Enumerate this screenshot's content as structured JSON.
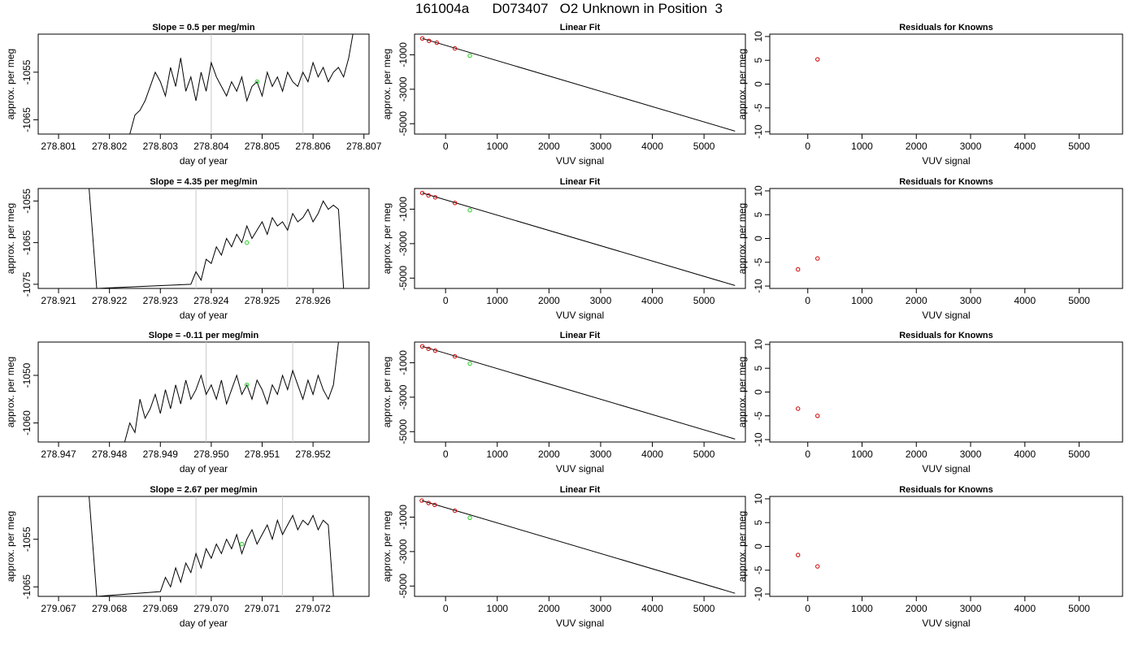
{
  "page": {
    "title": "161004a      D073407   O2 Unknown in Position  3"
  },
  "chart_data": [
    {
      "type": "line",
      "row": 0,
      "col": 0,
      "title": "Slope =  0.5  per meg/min",
      "xlabel": "day of year",
      "ylabel": "approx. per meg",
      "xlim": [
        278.8006,
        278.8071
      ],
      "ylim": [
        -1068,
        -1047
      ],
      "xticks": [
        "278.801",
        "278.802",
        "278.803",
        "278.804",
        "278.805",
        "278.806",
        "278.807"
      ],
      "yticks": [
        -1055,
        -1065
      ],
      "vlines": [
        278.804,
        278.8058
      ],
      "green_point": [
        278.8049,
        -1057
      ],
      "series": [
        {
          "x": [
            278.8024,
            278.8025,
            278.8026,
            278.8027,
            278.8028,
            278.8029,
            278.803,
            278.8031,
            278.8032,
            278.8033,
            278.8034,
            278.8035,
            278.8036,
            278.8037,
            278.8038,
            278.8039,
            278.804,
            278.8041,
            278.8042,
            278.8043,
            278.8044,
            278.8045,
            278.8046,
            278.8047,
            278.8048,
            278.8049,
            278.805,
            278.8051,
            278.8052,
            278.8053,
            278.8054,
            278.8055,
            278.8056,
            278.8057,
            278.8058,
            278.8059,
            278.806,
            278.8061,
            278.8062,
            278.8063,
            278.8064,
            278.8065,
            278.8066,
            278.8067,
            278.8068
          ],
          "y": [
            -1068,
            -1064,
            -1063,
            -1061,
            -1058,
            -1055,
            -1057,
            -1060,
            -1054,
            -1058,
            -1052,
            -1059,
            -1056,
            -1061,
            -1055,
            -1059,
            -1053,
            -1056,
            -1058,
            -1060,
            -1057,
            -1059,
            -1056,
            -1061,
            -1058,
            -1057,
            -1060,
            -1055,
            -1058,
            -1056,
            -1059,
            -1055,
            -1057,
            -1058,
            -1055,
            -1057,
            -1053,
            -1056,
            -1054,
            -1057,
            -1055,
            -1054,
            -1056,
            -1052,
            -1046
          ]
        }
      ]
    },
    {
      "type": "scatter+line",
      "row": 0,
      "col": 1,
      "title": "Linear Fit",
      "xlabel": "VUV signal",
      "ylabel": "approx. per meg",
      "xlim": [
        -600,
        5800
      ],
      "ylim": [
        -5600,
        200
      ],
      "xticks": [
        0,
        1000,
        2000,
        3000,
        4000,
        5000
      ],
      "yticks": [
        -1000,
        -3000,
        -5000
      ],
      "knowns": {
        "x": [
          -450,
          -320,
          -170,
          180
        ],
        "y": [
          -50,
          -190,
          -300,
          -630
        ]
      },
      "unknown": {
        "x": [
          470
        ],
        "y": [
          -1050
        ]
      },
      "fit_line": {
        "x": [
          -450,
          5600
        ],
        "y": [
          -50,
          -5430
        ]
      }
    },
    {
      "type": "scatter",
      "row": 0,
      "col": 2,
      "title": "Residuals for Knowns",
      "xlabel": "VUV signal",
      "ylabel": "approx. per meg",
      "xlim": [
        -700,
        5800
      ],
      "ylim": [
        -10.5,
        10.5
      ],
      "xticks": [
        0,
        1000,
        2000,
        3000,
        4000,
        5000
      ],
      "yticks": [
        10,
        5,
        0,
        -5,
        -10
      ],
      "points": {
        "x": [
          180
        ],
        "y": [
          5.2
        ]
      }
    },
    {
      "type": "line",
      "row": 1,
      "col": 0,
      "title": "Slope =  4.35  per meg/min",
      "xlabel": "day of year",
      "ylabel": "approx. per meg",
      "xlim": [
        278.9206,
        278.9271
      ],
      "ylim": [
        -1076,
        -1052
      ],
      "xticks": [
        "278.921",
        "278.922",
        "278.923",
        "278.924",
        "278.925",
        "278.926"
      ],
      "yticks": [
        -1055,
        -1065,
        -1075
      ],
      "vlines": [
        278.9237,
        278.9255
      ],
      "green_point": [
        278.9247,
        -1065
      ],
      "series": [
        {
          "x": [
            278.9216,
            278.92175,
            278.9236,
            278.9237,
            278.9238,
            278.9239,
            278.924,
            278.9241,
            278.9242,
            278.9243,
            278.9244,
            278.9245,
            278.9246,
            278.9247,
            278.9248,
            278.9249,
            278.925,
            278.9251,
            278.9252,
            278.9253,
            278.9254,
            278.9255,
            278.9256,
            278.9257,
            278.9258,
            278.9259,
            278.926,
            278.9261,
            278.9262,
            278.9263,
            278.9264,
            278.9265,
            278.9266
          ],
          "y": [
            -1052,
            -1076,
            -1075,
            -1072,
            -1074,
            -1069,
            -1070,
            -1066,
            -1068,
            -1064,
            -1066,
            -1063,
            -1065,
            -1061,
            -1064,
            -1062,
            -1060,
            -1063,
            -1059,
            -1061,
            -1060,
            -1062,
            -1058,
            -1060,
            -1059,
            -1057,
            -1060,
            -1058,
            -1055,
            -1057,
            -1056,
            -1057,
            -1076
          ]
        }
      ]
    },
    {
      "type": "scatter+line",
      "row": 1,
      "col": 1,
      "title": "Linear Fit",
      "xlabel": "VUV signal",
      "ylabel": "approx. per meg",
      "xlim": [
        -600,
        5800
      ],
      "ylim": [
        -5600,
        200
      ],
      "xticks": [
        0,
        1000,
        2000,
        3000,
        4000,
        5000
      ],
      "yticks": [
        -1000,
        -3000,
        -5000
      ],
      "knowns": {
        "x": [
          -450,
          -330,
          -200,
          180
        ],
        "y": [
          -60,
          -200,
          -310,
          -640
        ]
      },
      "unknown": {
        "x": [
          470
        ],
        "y": [
          -1060
        ]
      },
      "fit_line": {
        "x": [
          -450,
          5600
        ],
        "y": [
          -60,
          -5430
        ]
      }
    },
    {
      "type": "scatter",
      "row": 1,
      "col": 2,
      "title": "Residuals for Knowns",
      "xlabel": "VUV signal",
      "ylabel": "approx. per meg",
      "xlim": [
        -700,
        5800
      ],
      "ylim": [
        -10.5,
        10.5
      ],
      "xticks": [
        0,
        1000,
        2000,
        3000,
        4000,
        5000
      ],
      "yticks": [
        10,
        5,
        0,
        -5,
        -10
      ],
      "points": {
        "x": [
          -180,
          180
        ],
        "y": [
          -6.5,
          -4.2
        ]
      }
    },
    {
      "type": "line",
      "row": 2,
      "col": 0,
      "title": "Slope =  -0.11  per meg/min",
      "xlabel": "day of year",
      "ylabel": "approx. per meg",
      "xlim": [
        278.9466,
        278.9531
      ],
      "ylim": [
        -1064,
        -1043
      ],
      "xticks": [
        "278.947",
        "278.948",
        "278.949",
        "278.950",
        "278.951",
        "278.952"
      ],
      "yticks": [
        -1050,
        -1060
      ],
      "vlines": [
        278.9499,
        278.9516
      ],
      "green_point": [
        278.9507,
        -1052
      ],
      "series": [
        {
          "x": [
            278.9483,
            278.9484,
            278.9485,
            278.9486,
            278.9487,
            278.9488,
            278.9489,
            278.949,
            278.9491,
            278.9492,
            278.9493,
            278.9494,
            278.9495,
            278.9496,
            278.9497,
            278.9498,
            278.9499,
            278.95,
            278.9501,
            278.9502,
            278.9503,
            278.9504,
            278.9505,
            278.9506,
            278.9507,
            278.9508,
            278.9509,
            278.951,
            278.9511,
            278.9512,
            278.9513,
            278.9514,
            278.9515,
            278.9516,
            278.9517,
            278.9518,
            278.9519,
            278.952,
            278.9521,
            278.9522,
            278.9523,
            278.9524,
            278.9525
          ],
          "y": [
            -1064,
            -1060,
            -1062,
            -1055,
            -1059,
            -1057,
            -1054,
            -1058,
            -1053,
            -1057,
            -1052,
            -1056,
            -1051,
            -1055,
            -1053,
            -1050,
            -1054,
            -1052,
            -1055,
            -1051,
            -1056,
            -1053,
            -1050,
            -1054,
            -1052,
            -1055,
            -1051,
            -1053,
            -1056,
            -1052,
            -1054,
            -1050,
            -1053,
            -1049,
            -1052,
            -1055,
            -1051,
            -1054,
            -1050,
            -1053,
            -1055,
            -1052,
            -1043
          ]
        }
      ]
    },
    {
      "type": "scatter+line",
      "row": 2,
      "col": 1,
      "title": "Linear Fit",
      "xlabel": "VUV signal",
      "ylabel": "approx. per meg",
      "xlim": [
        -600,
        5800
      ],
      "ylim": [
        -5600,
        200
      ],
      "xticks": [
        0,
        1000,
        2000,
        3000,
        4000,
        5000
      ],
      "yticks": [
        -1000,
        -3000,
        -5000
      ],
      "knowns": {
        "x": [
          -450,
          -330,
          -200,
          180
        ],
        "y": [
          -50,
          -190,
          -300,
          -630
        ]
      },
      "unknown": {
        "x": [
          470
        ],
        "y": [
          -1050
        ]
      },
      "fit_line": {
        "x": [
          -450,
          5600
        ],
        "y": [
          -50,
          -5430
        ]
      }
    },
    {
      "type": "scatter",
      "row": 2,
      "col": 2,
      "title": "Residuals for Knowns",
      "xlabel": "VUV signal",
      "ylabel": "approx. per meg",
      "xlim": [
        -700,
        5800
      ],
      "ylim": [
        -10.5,
        10.5
      ],
      "xticks": [
        0,
        1000,
        2000,
        3000,
        4000,
        5000
      ],
      "yticks": [
        10,
        5,
        0,
        -5,
        -10
      ],
      "points": {
        "x": [
          -180,
          180
        ],
        "y": [
          -3.5,
          -5.0
        ]
      }
    },
    {
      "type": "line",
      "row": 3,
      "col": 0,
      "title": "Slope =  2.67  per meg/min",
      "xlabel": "day of year",
      "ylabel": "approx. per meg",
      "xlim": [
        279.0666,
        279.0731
      ],
      "ylim": [
        -1067,
        -1046
      ],
      "xticks": [
        "279.067",
        "279.068",
        "279.069",
        "279.070",
        "279.071",
        "279.072"
      ],
      "yticks": [
        -1055,
        -1065
      ],
      "vlines": [
        279.0697,
        279.0714
      ],
      "green_point": [
        279.0706,
        -1056
      ],
      "series": [
        {
          "x": [
            279.0676,
            279.06775,
            279.069,
            279.0691,
            279.0692,
            279.0693,
            279.0694,
            279.0695,
            279.0696,
            279.0697,
            279.0698,
            279.0699,
            279.07,
            279.0701,
            279.0702,
            279.0703,
            279.0704,
            279.0705,
            279.0706,
            279.0707,
            279.0708,
            279.0709,
            279.071,
            279.0711,
            279.0712,
            279.0713,
            279.0714,
            279.0715,
            279.0716,
            279.0717,
            279.0718,
            279.0719,
            279.072,
            279.0721,
            279.0722,
            279.0723,
            279.0724
          ],
          "y": [
            -1046,
            -1067,
            -1066,
            -1063,
            -1065,
            -1061,
            -1064,
            -1060,
            -1062,
            -1058,
            -1061,
            -1057,
            -1059,
            -1056,
            -1058,
            -1055,
            -1057,
            -1054,
            -1058,
            -1055,
            -1053,
            -1056,
            -1054,
            -1052,
            -1055,
            -1051,
            -1054,
            -1052,
            -1050,
            -1053,
            -1051,
            -1052,
            -1050,
            -1053,
            -1051,
            -1052,
            -1067
          ]
        }
      ]
    },
    {
      "type": "scatter+line",
      "row": 3,
      "col": 1,
      "title": "Linear Fit",
      "xlabel": "VUV signal",
      "ylabel": "approx. per meg",
      "xlim": [
        -600,
        5800
      ],
      "ylim": [
        -5600,
        200
      ],
      "xticks": [
        0,
        1000,
        2000,
        3000,
        4000,
        5000
      ],
      "yticks": [
        -1000,
        -3000,
        -5000
      ],
      "knowns": {
        "x": [
          -460,
          -330,
          -210,
          180
        ],
        "y": [
          -40,
          -180,
          -290,
          -630
        ]
      },
      "unknown": {
        "x": [
          470
        ],
        "y": [
          -1040
        ]
      },
      "fit_line": {
        "x": [
          -460,
          5600
        ],
        "y": [
          -40,
          -5420
        ]
      }
    },
    {
      "type": "scatter",
      "row": 3,
      "col": 2,
      "title": "Residuals for Knowns",
      "xlabel": "VUV signal",
      "ylabel": "approx. per meg",
      "xlim": [
        -700,
        5800
      ],
      "ylim": [
        -10.5,
        10.5
      ],
      "xticks": [
        0,
        1000,
        2000,
        3000,
        4000,
        5000
      ],
      "yticks": [
        10,
        5,
        0,
        -5,
        -10
      ],
      "points": {
        "x": [
          -180,
          180
        ],
        "y": [
          -1.8,
          -4.2
        ]
      }
    }
  ],
  "colors": {
    "axis": "#000000",
    "vline": "#c8c8c8",
    "known_point": "#cc0000",
    "unknown_point": "#22cc22",
    "line": "#000000"
  }
}
